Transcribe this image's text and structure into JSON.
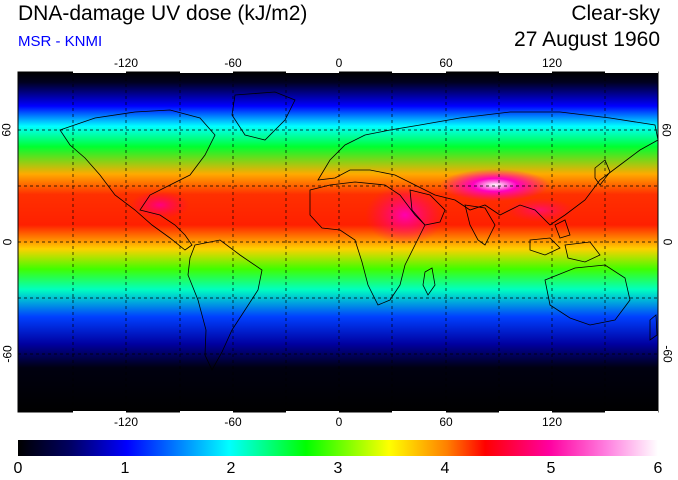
{
  "header": {
    "title": "DNA-damage UV dose (kJ/m2)",
    "source": "MSR - KNMI",
    "sky_condition": "Clear-sky",
    "date": "27 August 1960"
  },
  "map": {
    "longitude_ticks": [
      "-120",
      "-60",
      "0",
      "60",
      "120"
    ],
    "latitude_ticks": [
      "60",
      "0",
      "-60"
    ],
    "grid": "dashed, every 30 degrees"
  },
  "colorbar": {
    "labels": [
      "0",
      "1",
      "2",
      "3",
      "4",
      "5",
      "6"
    ],
    "range": [
      0,
      6
    ],
    "colors": [
      "#000000",
      "#0000ff",
      "#00ffff",
      "#00ff00",
      "#ffff00",
      "#ff0000",
      "#ff00a0",
      "#ffffff"
    ]
  }
}
